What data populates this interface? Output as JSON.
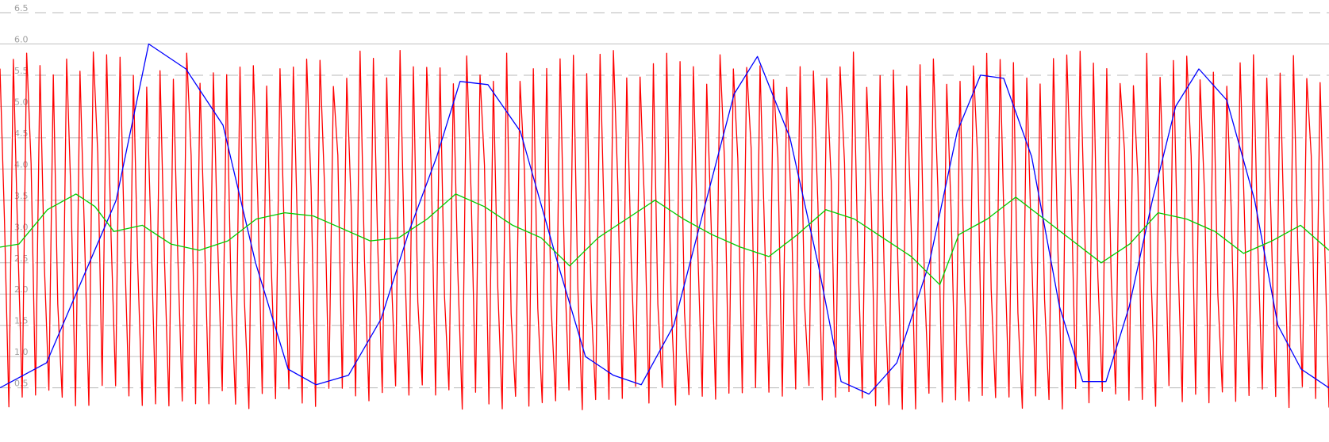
{
  "chart_data": {
    "type": "line",
    "ylim": [
      -0.1,
      6.5
    ],
    "y_ticks": [
      {
        "value": 6.5,
        "label": "6.5",
        "style": "dashed"
      },
      {
        "value": 6.0,
        "label": "6.0",
        "style": "solid"
      },
      {
        "value": 5.5,
        "label": "5.5",
        "style": "dashed"
      },
      {
        "value": 5.0,
        "label": "5.0",
        "style": "solid"
      },
      {
        "value": 4.5,
        "label": "4.5",
        "style": "dashed"
      },
      {
        "value": 4.0,
        "label": "4.0",
        "style": "solid"
      },
      {
        "value": 3.5,
        "label": "3.5",
        "style": "dashed"
      },
      {
        "value": 3.0,
        "label": "3.0",
        "style": "solid"
      },
      {
        "value": 2.5,
        "label": "2.5",
        "style": "dashed"
      },
      {
        "value": 2.0,
        "label": "2.0",
        "style": "solid"
      },
      {
        "value": 1.5,
        "label": "1.5",
        "style": "dashed"
      },
      {
        "value": 1.0,
        "label": "1.0",
        "style": "solid"
      },
      {
        "value": 0.5,
        "label": "0.5",
        "style": "dashed"
      }
    ],
    "grid": true,
    "legend": "none",
    "series": [
      {
        "color": "#ff0000",
        "sample_count": 300,
        "pattern": "sawtooth",
        "period": 3,
        "low": 0.15,
        "high": 5.9,
        "jitter": 0.2
      },
      {
        "color": "#0000ff",
        "points": [
          [
            0,
            0.5
          ],
          [
            10,
            0.9
          ],
          [
            25,
            3.5
          ],
          [
            32,
            6.0
          ],
          [
            40,
            5.6
          ],
          [
            48,
            4.7
          ],
          [
            55,
            2.5
          ],
          [
            62,
            0.8
          ],
          [
            68,
            0.55
          ],
          [
            75,
            0.7
          ],
          [
            82,
            1.6
          ],
          [
            88,
            3.0
          ],
          [
            94,
            4.2
          ],
          [
            99,
            5.4
          ],
          [
            105,
            5.35
          ],
          [
            112,
            4.6
          ],
          [
            120,
            2.5
          ],
          [
            126,
            1.0
          ],
          [
            132,
            0.7
          ],
          [
            138,
            0.55
          ],
          [
            145,
            1.5
          ],
          [
            152,
            3.5
          ],
          [
            158,
            5.2
          ],
          [
            163,
            5.8
          ],
          [
            170,
            4.5
          ],
          [
            176,
            2.5
          ],
          [
            181,
            0.6
          ],
          [
            187,
            0.4
          ],
          [
            193,
            0.9
          ],
          [
            200,
            2.5
          ],
          [
            206,
            4.6
          ],
          [
            211,
            5.5
          ],
          [
            216,
            5.45
          ],
          [
            222,
            4.2
          ],
          [
            228,
            1.8
          ],
          [
            233,
            0.6
          ],
          [
            238,
            0.6
          ],
          [
            243,
            1.8
          ],
          [
            248,
            3.5
          ],
          [
            253,
            5.0
          ],
          [
            258,
            5.6
          ],
          [
            264,
            5.1
          ],
          [
            270,
            3.5
          ],
          [
            275,
            1.5
          ],
          [
            280,
            0.8
          ],
          [
            286,
            0.5
          ]
        ]
      },
      {
        "color": "#00cc00",
        "points": [
          [
            0,
            2.75
          ],
          [
            4,
            2.8
          ],
          [
            10,
            3.35
          ],
          [
            16,
            3.6
          ],
          [
            20,
            3.4
          ],
          [
            24,
            3.0
          ],
          [
            30,
            3.1
          ],
          [
            36,
            2.8
          ],
          [
            42,
            2.7
          ],
          [
            48,
            2.85
          ],
          [
            54,
            3.2
          ],
          [
            60,
            3.3
          ],
          [
            66,
            3.25
          ],
          [
            72,
            3.05
          ],
          [
            78,
            2.85
          ],
          [
            84,
            2.9
          ],
          [
            90,
            3.2
          ],
          [
            96,
            3.6
          ],
          [
            102,
            3.4
          ],
          [
            108,
            3.1
          ],
          [
            114,
            2.9
          ],
          [
            120,
            2.45
          ],
          [
            126,
            2.9
          ],
          [
            132,
            3.2
          ],
          [
            138,
            3.5
          ],
          [
            144,
            3.2
          ],
          [
            150,
            2.95
          ],
          [
            156,
            2.75
          ],
          [
            162,
            2.6
          ],
          [
            168,
            2.95
          ],
          [
            174,
            3.35
          ],
          [
            180,
            3.2
          ],
          [
            186,
            2.9
          ],
          [
            192,
            2.6
          ],
          [
            198,
            2.15
          ],
          [
            202,
            2.95
          ],
          [
            208,
            3.2
          ],
          [
            214,
            3.55
          ],
          [
            220,
            3.2
          ],
          [
            226,
            2.85
          ],
          [
            232,
            2.5
          ],
          [
            238,
            2.8
          ],
          [
            244,
            3.3
          ],
          [
            250,
            3.2
          ],
          [
            256,
            3.0
          ],
          [
            262,
            2.65
          ],
          [
            268,
            2.85
          ],
          [
            274,
            3.1
          ],
          [
            280,
            2.7
          ]
        ]
      }
    ]
  }
}
